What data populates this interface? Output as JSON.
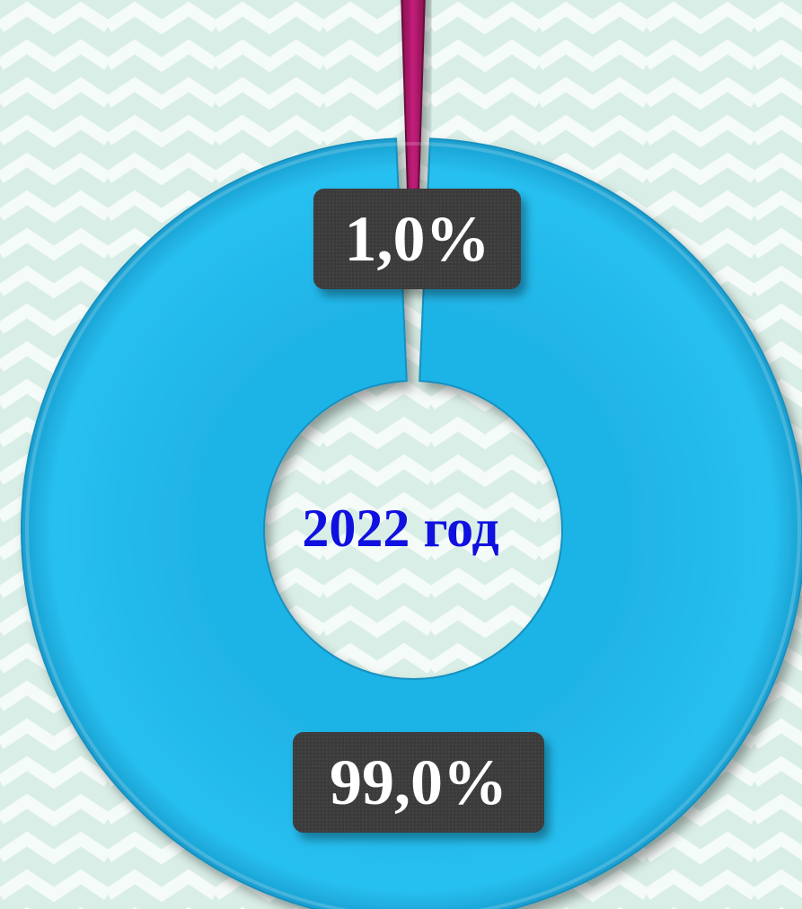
{
  "chart_data": {
    "type": "pie",
    "variant": "doughnut",
    "center_text": "2022 год",
    "slices": [
      {
        "value": 1.0,
        "label": "1,0%",
        "color": "#b0186a"
      },
      {
        "value": 99.0,
        "label": "99,0%",
        "color": "#22b8ea"
      }
    ],
    "legend": "none"
  },
  "colors": {
    "background": "#d9eee6",
    "pattern": "#f4fbf8",
    "center_text": "#1010e0",
    "label_box": "#3b3b3b",
    "label_text": "#ffffff"
  }
}
